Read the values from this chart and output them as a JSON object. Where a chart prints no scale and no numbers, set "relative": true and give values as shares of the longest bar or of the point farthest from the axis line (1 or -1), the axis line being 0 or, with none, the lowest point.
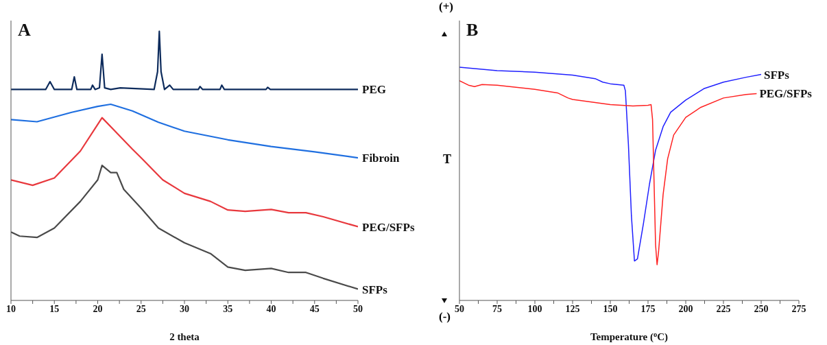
{
  "chart_data": [
    {
      "type": "line",
      "title": "A",
      "xlabel": "2 theta",
      "relative": true,
      "marker": "none",
      "line_style": "solid",
      "grid": false,
      "legend": false,
      "xlim": [
        10,
        50
      ],
      "xticks": [
        10,
        {
          "value": 12.5,
          "label": null
        },
        15,
        {
          "value": 17.5,
          "label": null
        },
        20,
        {
          "value": 22.5,
          "label": null
        },
        25,
        {
          "value": 27.5,
          "label": null
        },
        30,
        {
          "value": 32.5,
          "label": null
        },
        35,
        {
          "value": 37.5,
          "label": null
        },
        40,
        {
          "value": 42.5,
          "label": null
        },
        45,
        {
          "value": 47.5,
          "label": null
        },
        50
      ],
      "series": [
        {
          "name": "PEG",
          "color": "#0d2b5c",
          "x": [
            10,
            14,
            14.5,
            15,
            17,
            17.3,
            17.6,
            19.2,
            19.4,
            19.7,
            20.2,
            20.5,
            20.8,
            21.5,
            22.6,
            26.5,
            26.9,
            27.1,
            27.3,
            27.7,
            28.3,
            28.7,
            31.6,
            31.8,
            32.1,
            34.1,
            34.3,
            34.6,
            39.4,
            39.6,
            39.9,
            50
          ],
          "values": [
            0.784,
            0.784,
            0.813,
            0.784,
            0.784,
            0.831,
            0.784,
            0.784,
            0.8,
            0.784,
            0.79,
            0.915,
            0.79,
            0.784,
            0.79,
            0.784,
            0.85,
            1,
            0.85,
            0.784,
            0.8,
            0.784,
            0.784,
            0.795,
            0.784,
            0.784,
            0.8,
            0.784,
            0.784,
            0.792,
            0.784,
            0.784
          ]
        },
        {
          "name": "Fibroin",
          "color": "#1f6fe0",
          "x": [
            10,
            13,
            17,
            20,
            21.5,
            24,
            27,
            30,
            35,
            40,
            45,
            50
          ],
          "values": [
            0.672,
            0.664,
            0.699,
            0.721,
            0.729,
            0.704,
            0.662,
            0.629,
            0.597,
            0.572,
            0.552,
            0.53
          ]
        },
        {
          "name": "PEG/SFPs",
          "color": "#e8383d",
          "x": [
            10,
            12.5,
            15,
            18,
            20,
            20.5,
            22,
            24,
            25,
            27.5,
            30,
            33,
            35,
            37,
            40,
            42,
            44,
            46,
            50
          ],
          "values": [
            0.448,
            0.428,
            0.455,
            0.555,
            0.654,
            0.679,
            0.629,
            0.562,
            0.53,
            0.448,
            0.398,
            0.368,
            0.336,
            0.331,
            0.338,
            0.326,
            0.326,
            0.311,
            0.274
          ]
        },
        {
          "name": "SFPs",
          "color": "#4a4a4a",
          "x": [
            10,
            11,
            13,
            15,
            18,
            20,
            20.5,
            21.5,
            22.2,
            23,
            24,
            25,
            27,
            30,
            33,
            35,
            37,
            40,
            42,
            44,
            46,
            50
          ],
          "values": [
            0.254,
            0.239,
            0.234,
            0.269,
            0.368,
            0.448,
            0.502,
            0.475,
            0.475,
            0.413,
            0.378,
            0.343,
            0.269,
            0.214,
            0.174,
            0.124,
            0.112,
            0.119,
            0.104,
            0.104,
            0.082,
            0.042
          ]
        }
      ]
    },
    {
      "type": "line",
      "title": "B",
      "xlabel": "Temperature ($^{o}$C)",
      "ylabel": "T",
      "annotations": [
        "(+)",
        "(-)"
      ],
      "relative": true,
      "marker": "none",
      "line_style": "solid",
      "grid": false,
      "legend": false,
      "xlim": [
        50,
        275
      ],
      "xticks": [
        50,
        {
          "value": 62.5,
          "label": null
        },
        75,
        {
          "value": 87.5,
          "label": null
        },
        100,
        {
          "value": 112.5,
          "label": null
        },
        125,
        {
          "value": 137.5,
          "label": null
        },
        150,
        {
          "value": 162.5,
          "label": null
        },
        175,
        {
          "value": 187.5,
          "label": null
        },
        200,
        {
          "value": 212.5,
          "label": null
        },
        225,
        {
          "value": 237.5,
          "label": null
        },
        250,
        {
          "value": 262.5,
          "label": null
        },
        275
      ],
      "series": [
        {
          "name": "SFPs",
          "color": "#1f1fff",
          "x": [
            50,
            75,
            100,
            125,
            140,
            145,
            150,
            159,
            160,
            162,
            164,
            166,
            168,
            172,
            176,
            180,
            185,
            190,
            200,
            212,
            225,
            240,
            250
          ],
          "values": [
            1,
            0.985,
            0.979,
            0.966,
            0.951,
            0.936,
            0.929,
            0.923,
            0.899,
            0.669,
            0.362,
            0.169,
            0.178,
            0.331,
            0.5,
            0.644,
            0.745,
            0.807,
            0.859,
            0.908,
            0.936,
            0.957,
            0.969
          ]
        },
        {
          "name": "PEG/SFPs",
          "color": "#ff2020",
          "x": [
            50,
            56,
            60,
            65,
            75,
            100,
            115,
            122,
            125,
            150,
            165,
            175,
            177,
            178,
            180,
            181,
            182,
            185,
            188,
            192,
            200,
            210,
            225,
            240,
            247
          ],
          "values": [
            0.942,
            0.923,
            0.917,
            0.926,
            0.923,
            0.905,
            0.89,
            0.868,
            0.862,
            0.84,
            0.834,
            0.837,
            0.84,
            0.776,
            0.239,
            0.153,
            0.209,
            0.454,
            0.607,
            0.709,
            0.785,
            0.828,
            0.868,
            0.883,
            0.887
          ]
        }
      ]
    }
  ]
}
